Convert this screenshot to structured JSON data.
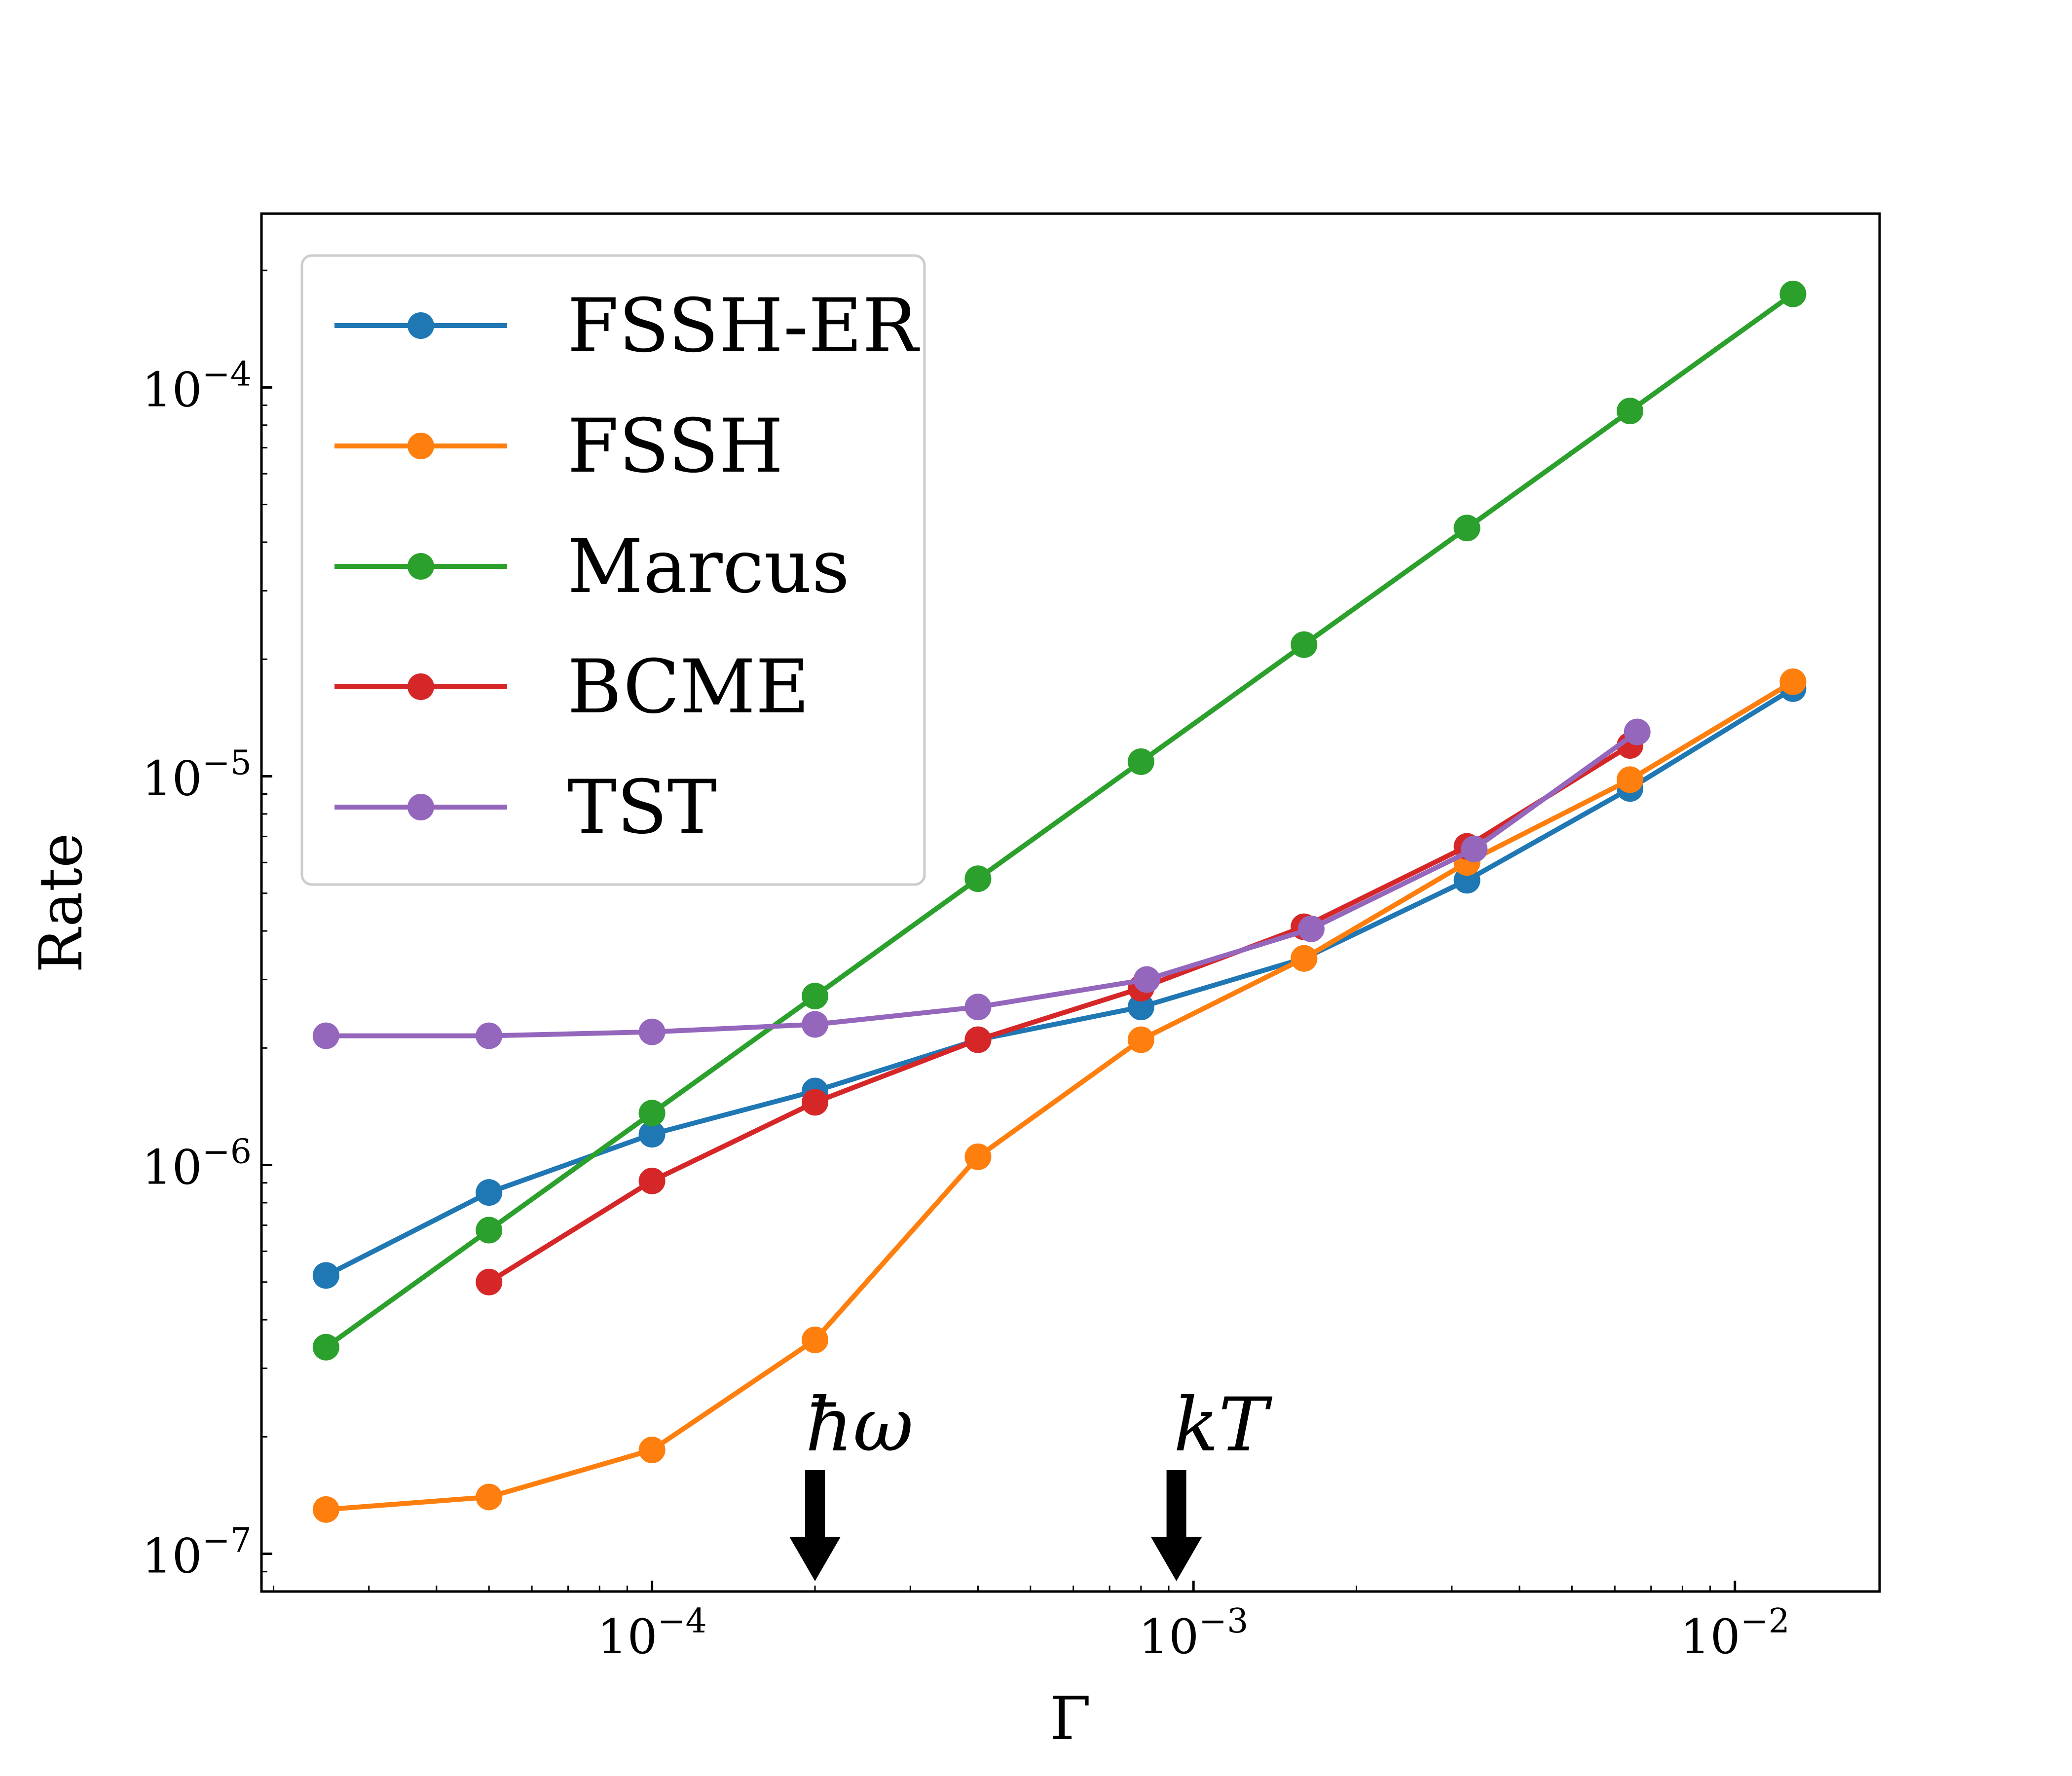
{
  "chart_data": {
    "type": "line",
    "title": "",
    "xlabel": "Γ",
    "ylabel": "Rate",
    "xscale": "log",
    "yscale": "log",
    "xlim": [
      1.9e-05,
      0.0185
    ],
    "ylim": [
      8e-08,
      0.00028
    ],
    "grid": false,
    "legend_position": "upper-left",
    "x_ticks": [
      {
        "value": 0.0001,
        "mantissa": "10",
        "exp": "−4"
      },
      {
        "value": 0.001,
        "mantissa": "10",
        "exp": "−3"
      },
      {
        "value": 0.01,
        "mantissa": "10",
        "exp": "−2"
      }
    ],
    "y_ticks": [
      {
        "value": 1e-07,
        "mantissa": "10",
        "exp": "−7"
      },
      {
        "value": 1e-06,
        "mantissa": "10",
        "exp": "−6"
      },
      {
        "value": 1e-05,
        "mantissa": "10",
        "exp": "−5"
      },
      {
        "value": 0.0001,
        "mantissa": "10",
        "exp": "−4"
      }
    ],
    "series": [
      {
        "name": "FSSH-ER",
        "color": "#1f77b4",
        "x": [
          2.5e-05,
          5e-05,
          0.0001,
          0.0002,
          0.0004,
          0.0008,
          0.0016,
          0.0032,
          0.0064,
          0.0128
        ],
        "y": [
          5.2e-07,
          8.5e-07,
          1.2e-06,
          1.55e-06,
          2.1e-06,
          2.55e-06,
          3.4e-06,
          5.4e-06,
          9.3e-06,
          1.68e-05
        ]
      },
      {
        "name": "FSSH",
        "color": "#ff7f0e",
        "x": [
          2.5e-05,
          5e-05,
          0.0001,
          0.0002,
          0.0004,
          0.0008,
          0.0016,
          0.0032,
          0.0064,
          0.0128
        ],
        "y": [
          1.3e-07,
          1.4e-07,
          1.85e-07,
          3.55e-07,
          1.05e-06,
          2.1e-06,
          3.4e-06,
          6e-06,
          9.8e-06,
          1.75e-05
        ]
      },
      {
        "name": "Marcus",
        "color": "#2ca02c",
        "x": [
          2.5e-05,
          5e-05,
          0.0001,
          0.0002,
          0.0004,
          0.0008,
          0.0016,
          0.0032,
          0.0064,
          0.0128
        ],
        "y": [
          3.4e-07,
          6.8e-07,
          1.36e-06,
          2.72e-06,
          5.45e-06,
          1.09e-05,
          2.18e-05,
          4.35e-05,
          8.7e-05,
          0.000174
        ]
      },
      {
        "name": "BCME",
        "color": "#d62728",
        "x": [
          5e-05,
          0.0001,
          0.0002,
          0.0004,
          0.0008,
          0.0016,
          0.0032,
          0.0064
        ],
        "y": [
          5e-07,
          9.1e-07,
          1.45e-06,
          2.1e-06,
          2.85e-06,
          4.1e-06,
          6.6e-06,
          1.2e-05
        ]
      },
      {
        "name": "TST",
        "color": "#9467bd",
        "x": [
          2.5e-05,
          5e-05,
          0.0001,
          0.0002,
          0.0004,
          0.00082,
          0.00165,
          0.0033,
          0.0066
        ],
        "y": [
          2.15e-06,
          2.15e-06,
          2.2e-06,
          2.3e-06,
          2.55e-06,
          3e-06,
          4.05e-06,
          6.5e-06,
          1.3e-05
        ]
      }
    ],
    "annotations": [
      {
        "text": "ħω",
        "x": 0.0002
      },
      {
        "text": "kT",
        "x": 0.00093
      }
    ]
  }
}
